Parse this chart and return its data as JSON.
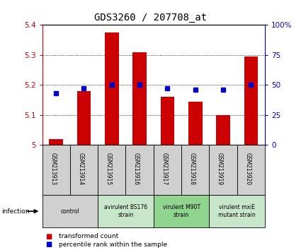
{
  "title": "GDS3260 / 207708_at",
  "samples": [
    "GSM213913",
    "GSM213914",
    "GSM213915",
    "GSM213916",
    "GSM213917",
    "GSM213918",
    "GSM213919",
    "GSM213920"
  ],
  "red_values": [
    5.02,
    5.18,
    5.375,
    5.31,
    5.16,
    5.145,
    5.1,
    5.295
  ],
  "blue_values": [
    43,
    47,
    50,
    50,
    47,
    46,
    46,
    50
  ],
  "ylim": [
    5.0,
    5.4
  ],
  "yticks": [
    5.0,
    5.1,
    5.2,
    5.3,
    5.4
  ],
  "right_yticks": [
    0,
    25,
    50,
    75,
    100
  ],
  "right_ylim": [
    0,
    100
  ],
  "bar_color": "#cc0000",
  "square_color": "#0000cc",
  "group_colors": [
    "#d0d0d0",
    "#c8e6c9",
    "#90d490",
    "#c8e6c9"
  ],
  "group_labels": [
    "control",
    "avirulent BS176\nstrain",
    "virulent M90T\nstrain",
    "virulent mxiE\nmutant strain"
  ],
  "group_ranges": [
    [
      0,
      2
    ],
    [
      2,
      4
    ],
    [
      4,
      6
    ],
    [
      6,
      8
    ]
  ],
  "sample_box_color": "#d0d0d0",
  "infection_label": "infection",
  "legend_red_label": "transformed count",
  "legend_blue_label": "percentile rank within the sample",
  "title_fontsize": 10,
  "bar_width": 0.5
}
